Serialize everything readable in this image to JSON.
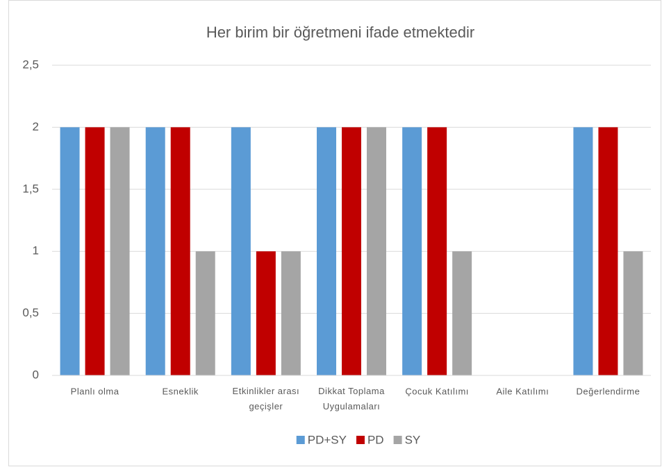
{
  "chart_data": {
    "type": "bar",
    "title": "Her birim bir öğretmeni ifade etmektedir",
    "categories": [
      "Planlı olma",
      "Esneklik",
      "Etkinlikler arası geçişler",
      "Dikkat Toplama Uygulamaları",
      "Çocuk Katılımı",
      "Aile Katılımı",
      "Değerlendirme"
    ],
    "series": [
      {
        "name": "PD+SY",
        "color": "#5b9bd5",
        "values": [
          2,
          2,
          2,
          2,
          2,
          0,
          2
        ]
      },
      {
        "name": "PD",
        "color": "#c00000",
        "values": [
          2,
          2,
          1,
          2,
          2,
          0,
          2
        ]
      },
      {
        "name": "SY",
        "color": "#a5a5a5",
        "values": [
          2,
          1,
          1,
          2,
          1,
          0,
          1
        ]
      }
    ],
    "ylim": [
      0,
      2.5
    ],
    "yticks": [
      0,
      {
        "value": 0.5,
        "label": "0,5"
      },
      1,
      {
        "value": 1.5,
        "label": "1,5"
      },
      2,
      {
        "value": 2.5,
        "label": "2,5"
      }
    ],
    "grid": true,
    "legend": "bottom"
  }
}
